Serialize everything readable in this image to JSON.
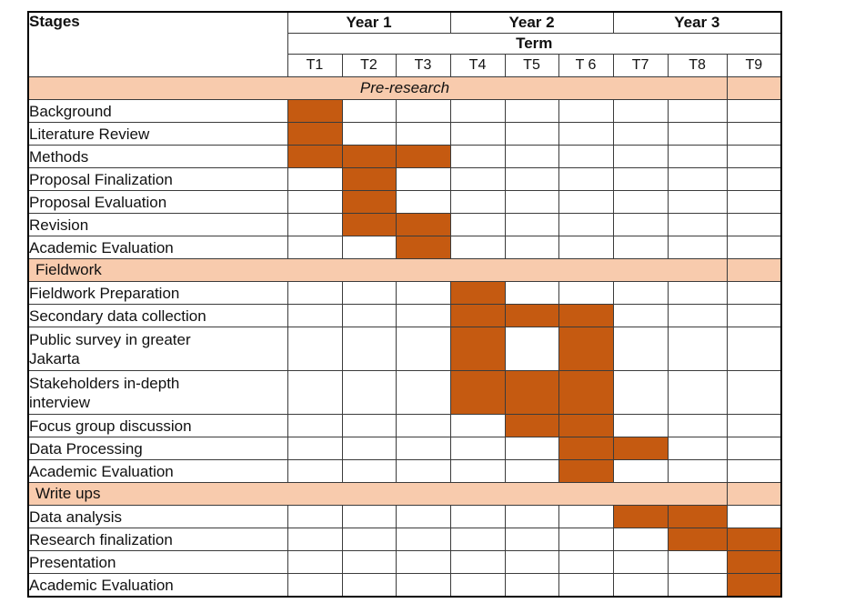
{
  "chart_data": {
    "type": "table",
    "subtype": "gantt-schedule",
    "header": {
      "stages_label": "Stages",
      "years": [
        "Year 1",
        "Year 2",
        "Year 3"
      ],
      "year_span_terms": 3,
      "term_label": "Term",
      "terms": [
        "T1",
        "T2",
        "T3",
        "T4",
        "T5",
        "T 6",
        "T7",
        "T8",
        "T9"
      ]
    },
    "sections": [
      {
        "label": "Pre-research",
        "label_style": "italic-centered",
        "rows": [
          {
            "label": "Background",
            "terms": [
              1
            ]
          },
          {
            "label": "Literature Review",
            "terms": [
              1
            ]
          },
          {
            "label": "Methods",
            "terms": [
              1,
              2,
              3
            ]
          },
          {
            "label": "Proposal Finalization",
            "terms": [
              2
            ]
          },
          {
            "label": "Proposal Evaluation",
            "terms": [
              2
            ]
          },
          {
            "label": "Revision",
            "terms": [
              2,
              3
            ]
          },
          {
            "label": "Academic Evaluation",
            "terms": [
              3
            ]
          }
        ]
      },
      {
        "label": "Fieldwork",
        "label_style": "left",
        "rows": [
          {
            "label": "Fieldwork Preparation",
            "terms": [
              4
            ]
          },
          {
            "label": "Secondary data collection",
            "terms": [
              4,
              5,
              6
            ]
          },
          {
            "label": "Public survey in greater Jakarta",
            "terms": [
              4,
              6
            ],
            "two_line": true
          },
          {
            "label": "Stakeholders in-depth interview",
            "terms": [
              4,
              5,
              6
            ],
            "two_line": true
          },
          {
            "label": "Focus group discussion",
            "terms": [
              5,
              6
            ]
          },
          {
            "label": "Data Processing",
            "terms": [
              6,
              7
            ]
          },
          {
            "label": "Academic Evaluation",
            "terms": [
              6
            ]
          }
        ]
      },
      {
        "label": "Write ups",
        "label_style": "left",
        "rows": [
          {
            "label": "Data analysis",
            "terms": [
              7,
              8
            ]
          },
          {
            "label": "Research finalization",
            "terms": [
              8,
              9
            ]
          },
          {
            "label": "Presentation",
            "terms": [
              9
            ]
          },
          {
            "label": "Academic Evaluation",
            "terms": [
              9
            ]
          }
        ]
      }
    ],
    "layout": {
      "grid_on": true,
      "term_columns": 9
    },
    "colors": {
      "task_fill": "#C55A11",
      "section_band": "#F8CBAD",
      "grid_line": "#3b3b3b",
      "outer_border": "#000000",
      "background": "#ffffff"
    }
  }
}
